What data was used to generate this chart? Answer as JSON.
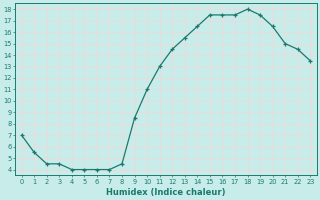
{
  "x": [
    0,
    1,
    2,
    3,
    4,
    5,
    6,
    7,
    8,
    9,
    10,
    11,
    12,
    13,
    14,
    15,
    16,
    17,
    18,
    19,
    20,
    21,
    22,
    23
  ],
  "y": [
    7.0,
    5.5,
    4.5,
    4.5,
    4.0,
    4.0,
    4.0,
    4.0,
    4.5,
    8.5,
    11.0,
    13.0,
    14.5,
    15.5,
    16.5,
    17.5,
    17.5,
    17.5,
    18.0,
    17.5,
    16.5,
    15.0,
    14.5,
    13.5
  ],
  "xlabel": "Humidex (Indice chaleur)",
  "ylim_min": 3.5,
  "ylim_max": 18.5,
  "xlim_min": -0.5,
  "xlim_max": 23.5,
  "yticks": [
    4,
    5,
    6,
    7,
    8,
    9,
    10,
    11,
    12,
    13,
    14,
    15,
    16,
    17,
    18
  ],
  "xticks": [
    0,
    1,
    2,
    3,
    4,
    5,
    6,
    7,
    8,
    9,
    10,
    11,
    12,
    13,
    14,
    15,
    16,
    17,
    18,
    19,
    20,
    21,
    22,
    23
  ],
  "line_color": "#1a7a6e",
  "marker": "+",
  "markersize": 3.5,
  "linewidth": 0.9,
  "bg_color": "#c8ecea",
  "grid_color": "#f0d8d8",
  "tick_color": "#1a7a6e",
  "label_fontsize": 5.5,
  "tick_fontsize": 4.8,
  "xlabel_fontsize": 6.0
}
